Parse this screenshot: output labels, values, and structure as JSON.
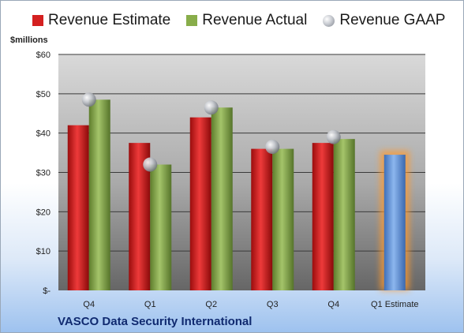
{
  "chart_data": {
    "type": "bar",
    "categories": [
      "Q4",
      "Q1",
      "Q2",
      "Q3",
      "Q4",
      "Q1 Estimate"
    ],
    "series": [
      {
        "name": "Revenue Estimate",
        "values": [
          42,
          37.5,
          44,
          36,
          37.5,
          null
        ],
        "color": "#e02020"
      },
      {
        "name": "Revenue Actual",
        "values": [
          48.5,
          32,
          46.5,
          36,
          38.5,
          null
        ],
        "color": "#8cb04a"
      },
      {
        "name": "Revenue GAAP",
        "values": [
          48.5,
          32,
          46.5,
          36.5,
          39,
          null
        ],
        "color": "#b8bcc4"
      },
      {
        "name": "",
        "values": [
          null,
          null,
          null,
          null,
          null,
          34.5
        ],
        "color": "#6f9ee0"
      }
    ],
    "ylabel": "$millions",
    "ylim": [
      0,
      60
    ],
    "yticks": [
      0,
      10,
      20,
      30,
      40,
      50,
      60
    ],
    "ytick_labels": [
      "$-",
      "$10",
      "$20",
      "$30",
      "$40",
      "$50",
      "$60"
    ],
    "grid": true,
    "legend": "top"
  },
  "footer": {
    "company": "VASCO Data Security International"
  }
}
